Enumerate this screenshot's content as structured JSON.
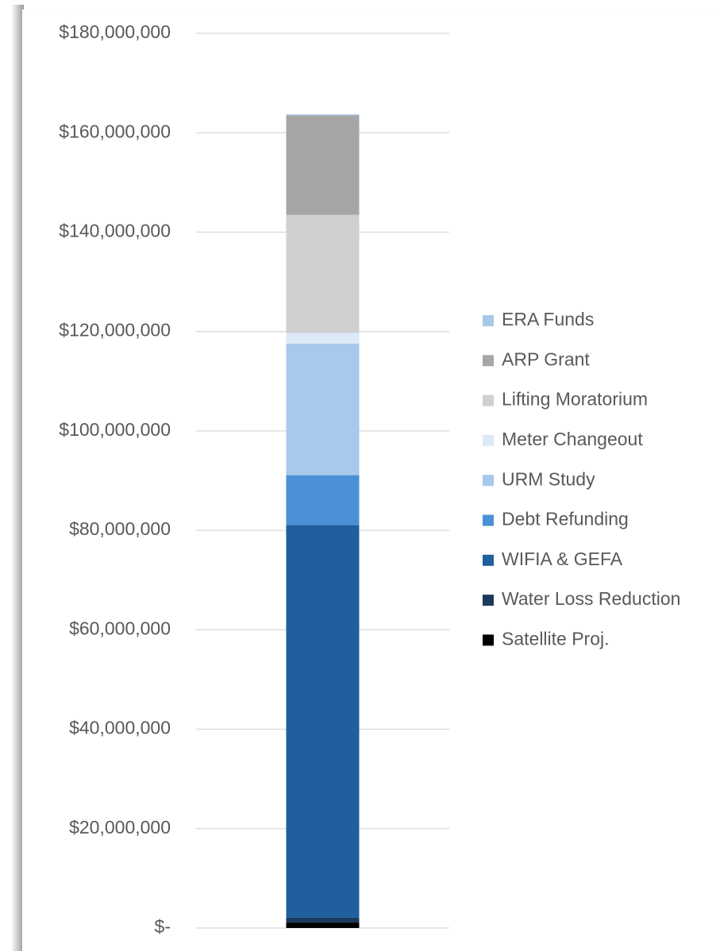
{
  "chart_data": {
    "type": "stacked_bar",
    "categories": [
      null
    ],
    "series": [
      {
        "name": "Satellite Proj.",
        "color": "#000000",
        "values": [
          1100000
        ]
      },
      {
        "name": "Water Loss Reduction",
        "color": "#1b3a5c",
        "values": [
          1000000
        ]
      },
      {
        "name": "WIFIA & GEFA",
        "color": "#1f5f9e",
        "values": [
          79000000
        ]
      },
      {
        "name": "Debt Refunding",
        "color": "#4a90d6",
        "values": [
          10000000
        ]
      },
      {
        "name": "URM Study",
        "color": "#a7c9ec",
        "values": [
          26500000
        ]
      },
      {
        "name": "Meter Changeout",
        "color": "#dde9f6",
        "values": [
          2100000
        ]
      },
      {
        "name": "Lifting Moratorium",
        "color": "#d0d0d0",
        "values": [
          23800000
        ]
      },
      {
        "name": "ARP Grant",
        "color": "#a6a6a6",
        "values": [
          20000000
        ]
      },
      {
        "name": "ERA Funds",
        "color": "#a9c8e8",
        "values": [
          200000
        ]
      }
    ],
    "ylim": [
      0,
      180000000
    ],
    "yticks": [
      {
        "value": 0,
        "label": "$-"
      },
      {
        "value": 20000000,
        "label": "$20,000,000"
      },
      {
        "value": 40000000,
        "label": "$40,000,000"
      },
      {
        "value": 60000000,
        "label": "$60,000,000"
      },
      {
        "value": 80000000,
        "label": "$80,000,000"
      },
      {
        "value": 100000000,
        "label": "$100,000,000"
      },
      {
        "value": 120000000,
        "label": "$120,000,000"
      },
      {
        "value": 140000000,
        "label": "$140,000,000"
      },
      {
        "value": 160000000,
        "label": "$160,000,000"
      },
      {
        "value": 180000000,
        "label": "$180,000,000"
      }
    ],
    "grid": true,
    "legend": "right"
  }
}
